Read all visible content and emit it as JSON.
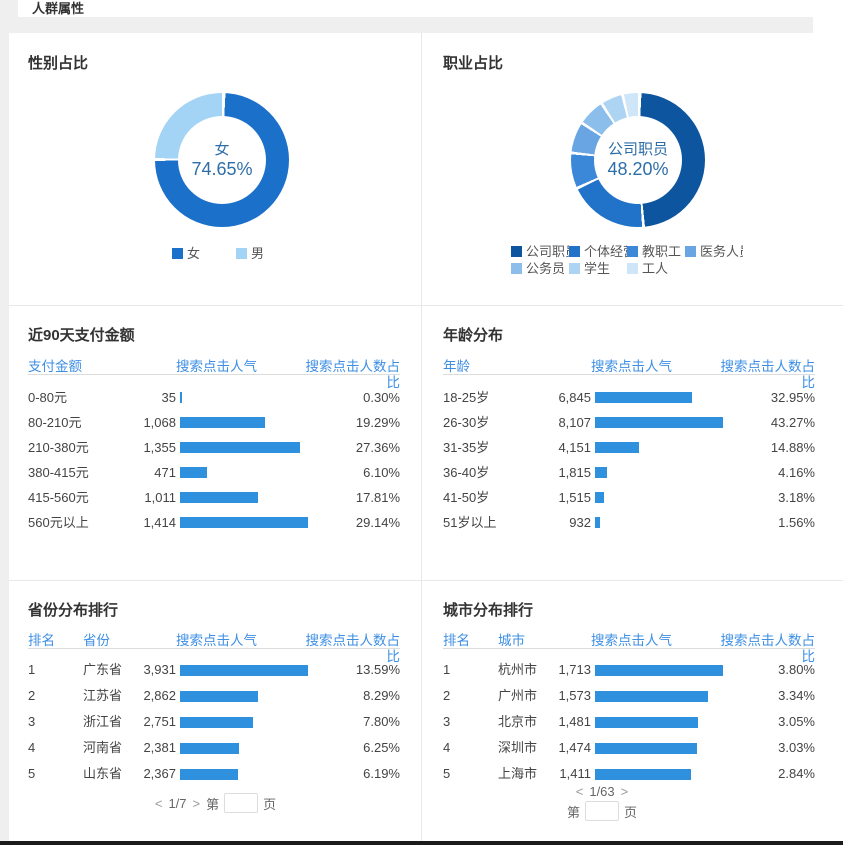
{
  "page": {
    "section_title": "人群属性"
  },
  "chart_data": {
    "gender": {
      "type": "pie",
      "title": "性别占比",
      "center": {
        "label": "女",
        "value": "74.65%"
      },
      "segments": [
        {
          "label": "女",
          "value": 74.65,
          "color": "#1b70ca"
        },
        {
          "label": "男",
          "value": 25.35,
          "color": "#a3d3f5"
        }
      ],
      "legend_position": "bottom"
    },
    "occupation": {
      "type": "pie",
      "title": "职业占比",
      "center": {
        "label": "公司职员",
        "value": "48.20%"
      },
      "note": "only 公司职员 48.20% labeled on screen; other segment values estimated from arc angles",
      "segments": [
        {
          "label": "公司职员",
          "value": 48.2,
          "color": "#0e55a0"
        },
        {
          "label": "个体经营",
          "value": 19.4,
          "color": "#2173c9"
        },
        {
          "label": "教职工",
          "value": 8.6,
          "color": "#3c88d8"
        },
        {
          "label": "医务人员",
          "value": 7.6,
          "color": "#68a5e2"
        },
        {
          "label": "公务员",
          "value": 6.6,
          "color": "#8cbeec"
        },
        {
          "label": "学生",
          "value": 5.4,
          "color": "#aed4f3"
        },
        {
          "label": "工人",
          "value": 4.2,
          "color": "#cfe6f9"
        }
      ],
      "legend_position": "bottom"
    },
    "payment": {
      "type": "bar",
      "title": "近90天支付金额",
      "columns": [
        "支付金额",
        "搜索点击人气",
        "搜索点击人数占比"
      ],
      "bar_color": "#2f90de",
      "rows": [
        {
          "label": "0-80元",
          "value": "35",
          "pct": "0.30%"
        },
        {
          "label": "80-210元",
          "value": "1,068",
          "pct": "19.29%"
        },
        {
          "label": "210-380元",
          "value": "1,355",
          "pct": "27.36%"
        },
        {
          "label": "380-415元",
          "value": "471",
          "pct": "6.10%"
        },
        {
          "label": "415-560元",
          "value": "1,011",
          "pct": "17.81%"
        },
        {
          "label": "560元以上",
          "value": "1,414",
          "pct": "29.14%"
        }
      ]
    },
    "age": {
      "type": "bar",
      "title": "年龄分布",
      "columns": [
        "年龄",
        "搜索点击人气",
        "搜索点击人数占比"
      ],
      "bar_color": "#2f90de",
      "rows": [
        {
          "label": "18-25岁",
          "value": "6,845",
          "pct": "32.95%"
        },
        {
          "label": "26-30岁",
          "value": "8,107",
          "pct": "43.27%"
        },
        {
          "label": "31-35岁",
          "value": "4,151",
          "pct": "14.88%"
        },
        {
          "label": "36-40岁",
          "value": "1,815",
          "pct": "4.16%"
        },
        {
          "label": "41-50岁",
          "value": "1,515",
          "pct": "3.18%"
        },
        {
          "label": "51岁以上",
          "value": "932",
          "pct": "1.56%"
        }
      ]
    },
    "province": {
      "type": "bar",
      "title": "省份分布排行",
      "columns": [
        "排名",
        "省份",
        "搜索点击人气",
        "搜索点击人数占比"
      ],
      "bar_color": "#2f90de",
      "rows": [
        {
          "rank": "1",
          "label": "广东省",
          "value": "3,931",
          "pct": "13.59%"
        },
        {
          "rank": "2",
          "label": "江苏省",
          "value": "2,862",
          "pct": "8.29%"
        },
        {
          "rank": "3",
          "label": "浙江省",
          "value": "2,751",
          "pct": "7.80%"
        },
        {
          "rank": "4",
          "label": "河南省",
          "value": "2,381",
          "pct": "6.25%"
        },
        {
          "rank": "5",
          "label": "山东省",
          "value": "2,367",
          "pct": "6.19%"
        }
      ],
      "pagination": {
        "prev": "<",
        "current": "1/7",
        "next": ">",
        "prefix": "第",
        "input_value": "",
        "suffix": "页"
      }
    },
    "city": {
      "type": "bar",
      "title": "城市分布排行",
      "columns": [
        "排名",
        "城市",
        "搜索点击人气",
        "搜索点击人数占比"
      ],
      "bar_color": "#2f90de",
      "rows": [
        {
          "rank": "1",
          "label": "杭州市",
          "value": "1,713",
          "pct": "3.80%"
        },
        {
          "rank": "2",
          "label": "广州市",
          "value": "1,573",
          "pct": "3.34%"
        },
        {
          "rank": "3",
          "label": "北京市",
          "value": "1,481",
          "pct": "3.05%"
        },
        {
          "rank": "4",
          "label": "深圳市",
          "value": "1,474",
          "pct": "3.03%"
        },
        {
          "rank": "5",
          "label": "上海市",
          "value": "1,411",
          "pct": "2.84%"
        }
      ],
      "pagination": {
        "prev": "<",
        "current": "1/63",
        "next": ">",
        "prefix": "第",
        "input_value": "",
        "suffix": "页"
      }
    }
  },
  "colors": {
    "bar": "#2f90de",
    "table_header": "#3e8fe4",
    "donut_center_text": "#2e6ea8",
    "page_band": "#efefef"
  }
}
